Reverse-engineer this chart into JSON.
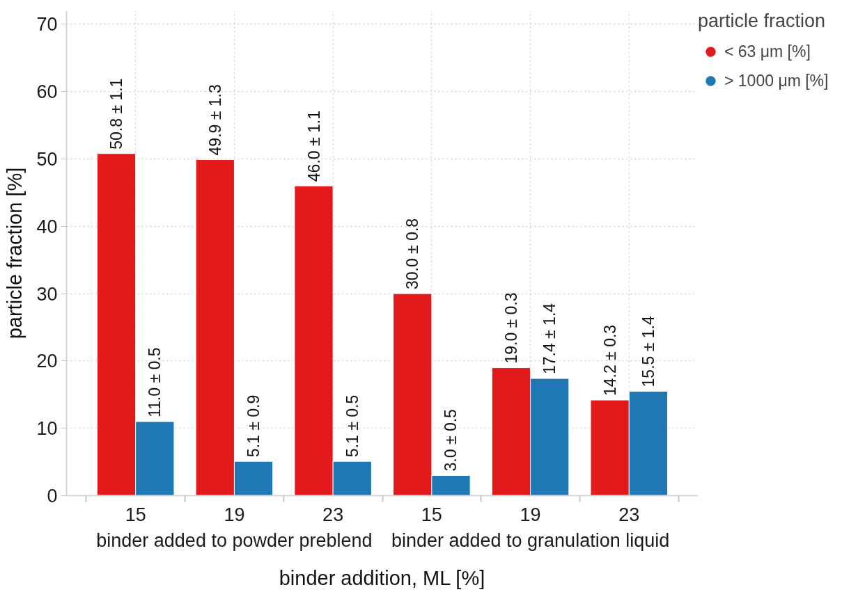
{
  "chart_data": {
    "type": "bar",
    "xlabel": "binder addition, ML [%]",
    "ylabel": "particle fraction [%]",
    "legend_title": "particle fraction",
    "categories": [
      "15",
      "19",
      "23",
      "15",
      "19",
      "23"
    ],
    "annotations": [
      "binder added to powder preblend",
      "binder added to granulation liquid"
    ],
    "series": [
      {
        "name": "< 63 μm [%]",
        "color": "#e31a1c",
        "values": [
          50.8,
          49.9,
          46.0,
          30.0,
          19.0,
          14.2
        ],
        "value_labels": [
          "50.8 ± 1.1",
          "49.9 ± 1.3",
          "46.0 ± 1.1",
          "30.0 ± 0.8",
          "19.0 ± 0.3",
          "14.2 ± 0.3"
        ]
      },
      {
        "name": "> 1000 μm [%]",
        "color": "#1f78b4",
        "values": [
          11.0,
          5.1,
          5.1,
          3.0,
          17.4,
          15.5
        ],
        "value_labels": [
          "11.0 ± 0.5",
          "5.1 ± 0.9",
          "5.1 ± 0.5",
          "3.0 ± 0.5",
          "17.4 ± 1.4",
          "15.5 ± 1.4"
        ]
      }
    ],
    "ylim": [
      0,
      72
    ],
    "yticks": [
      0,
      10,
      20,
      30,
      40,
      50,
      60,
      70
    ],
    "grid": true,
    "legend": "top right"
  }
}
